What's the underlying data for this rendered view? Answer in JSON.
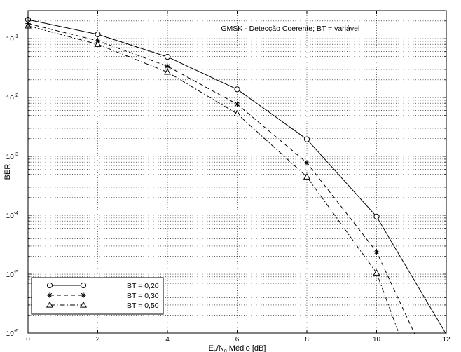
{
  "chart_data": {
    "type": "line",
    "title": "GMSK - Detecção Coerente; BT = variável",
    "xlabel": {
      "main": "E",
      "sub1": "b",
      "mid": "/N",
      "sub2": "0",
      "tail": " Médio [dB]"
    },
    "ylabel": "BER",
    "xlim": [
      0,
      12
    ],
    "ylim": [
      1e-06,
      0.3
    ],
    "y_scale": "log",
    "x_ticks": [
      "0",
      "2",
      "4",
      "6",
      "8",
      "10",
      "12"
    ],
    "y_ticks": [
      {
        "value": 1e-06,
        "base": "10",
        "exp": "-6"
      },
      {
        "value": 1e-05,
        "base": "10",
        "exp": "-5"
      },
      {
        "value": 0.0001,
        "base": "10",
        "exp": "-4"
      },
      {
        "value": 0.001,
        "base": "10",
        "exp": "-3"
      },
      {
        "value": 0.01,
        "base": "10",
        "exp": "-2"
      },
      {
        "value": 0.1,
        "base": "10",
        "exp": "-1"
      }
    ],
    "grid": true,
    "legend_position": "bottom-left",
    "series": [
      {
        "name": "BT = 0,20",
        "marker": "circle",
        "dash": "solid",
        "x": [
          0,
          2,
          4,
          6,
          8,
          10,
          12
        ],
        "y": [
          0.21,
          0.118,
          0.049,
          0.0138,
          0.00195,
          9.5e-05,
          9.5e-07
        ]
      },
      {
        "name": "BT = 0,30",
        "marker": "star",
        "dash": "dashed",
        "x": [
          0,
          2,
          4,
          6,
          8,
          10,
          11.1
        ],
        "y": [
          0.18,
          0.092,
          0.034,
          0.0077,
          0.00078,
          2.4e-05,
          9.5e-07
        ]
      },
      {
        "name": "BT = 0,50",
        "marker": "triangle",
        "dash": "dashdot",
        "x": [
          0,
          2,
          4,
          6,
          8,
          10,
          10.65
        ],
        "y": [
          0.165,
          0.08,
          0.027,
          0.0053,
          0.00045,
          1.05e-05,
          9.5e-07
        ]
      }
    ]
  }
}
